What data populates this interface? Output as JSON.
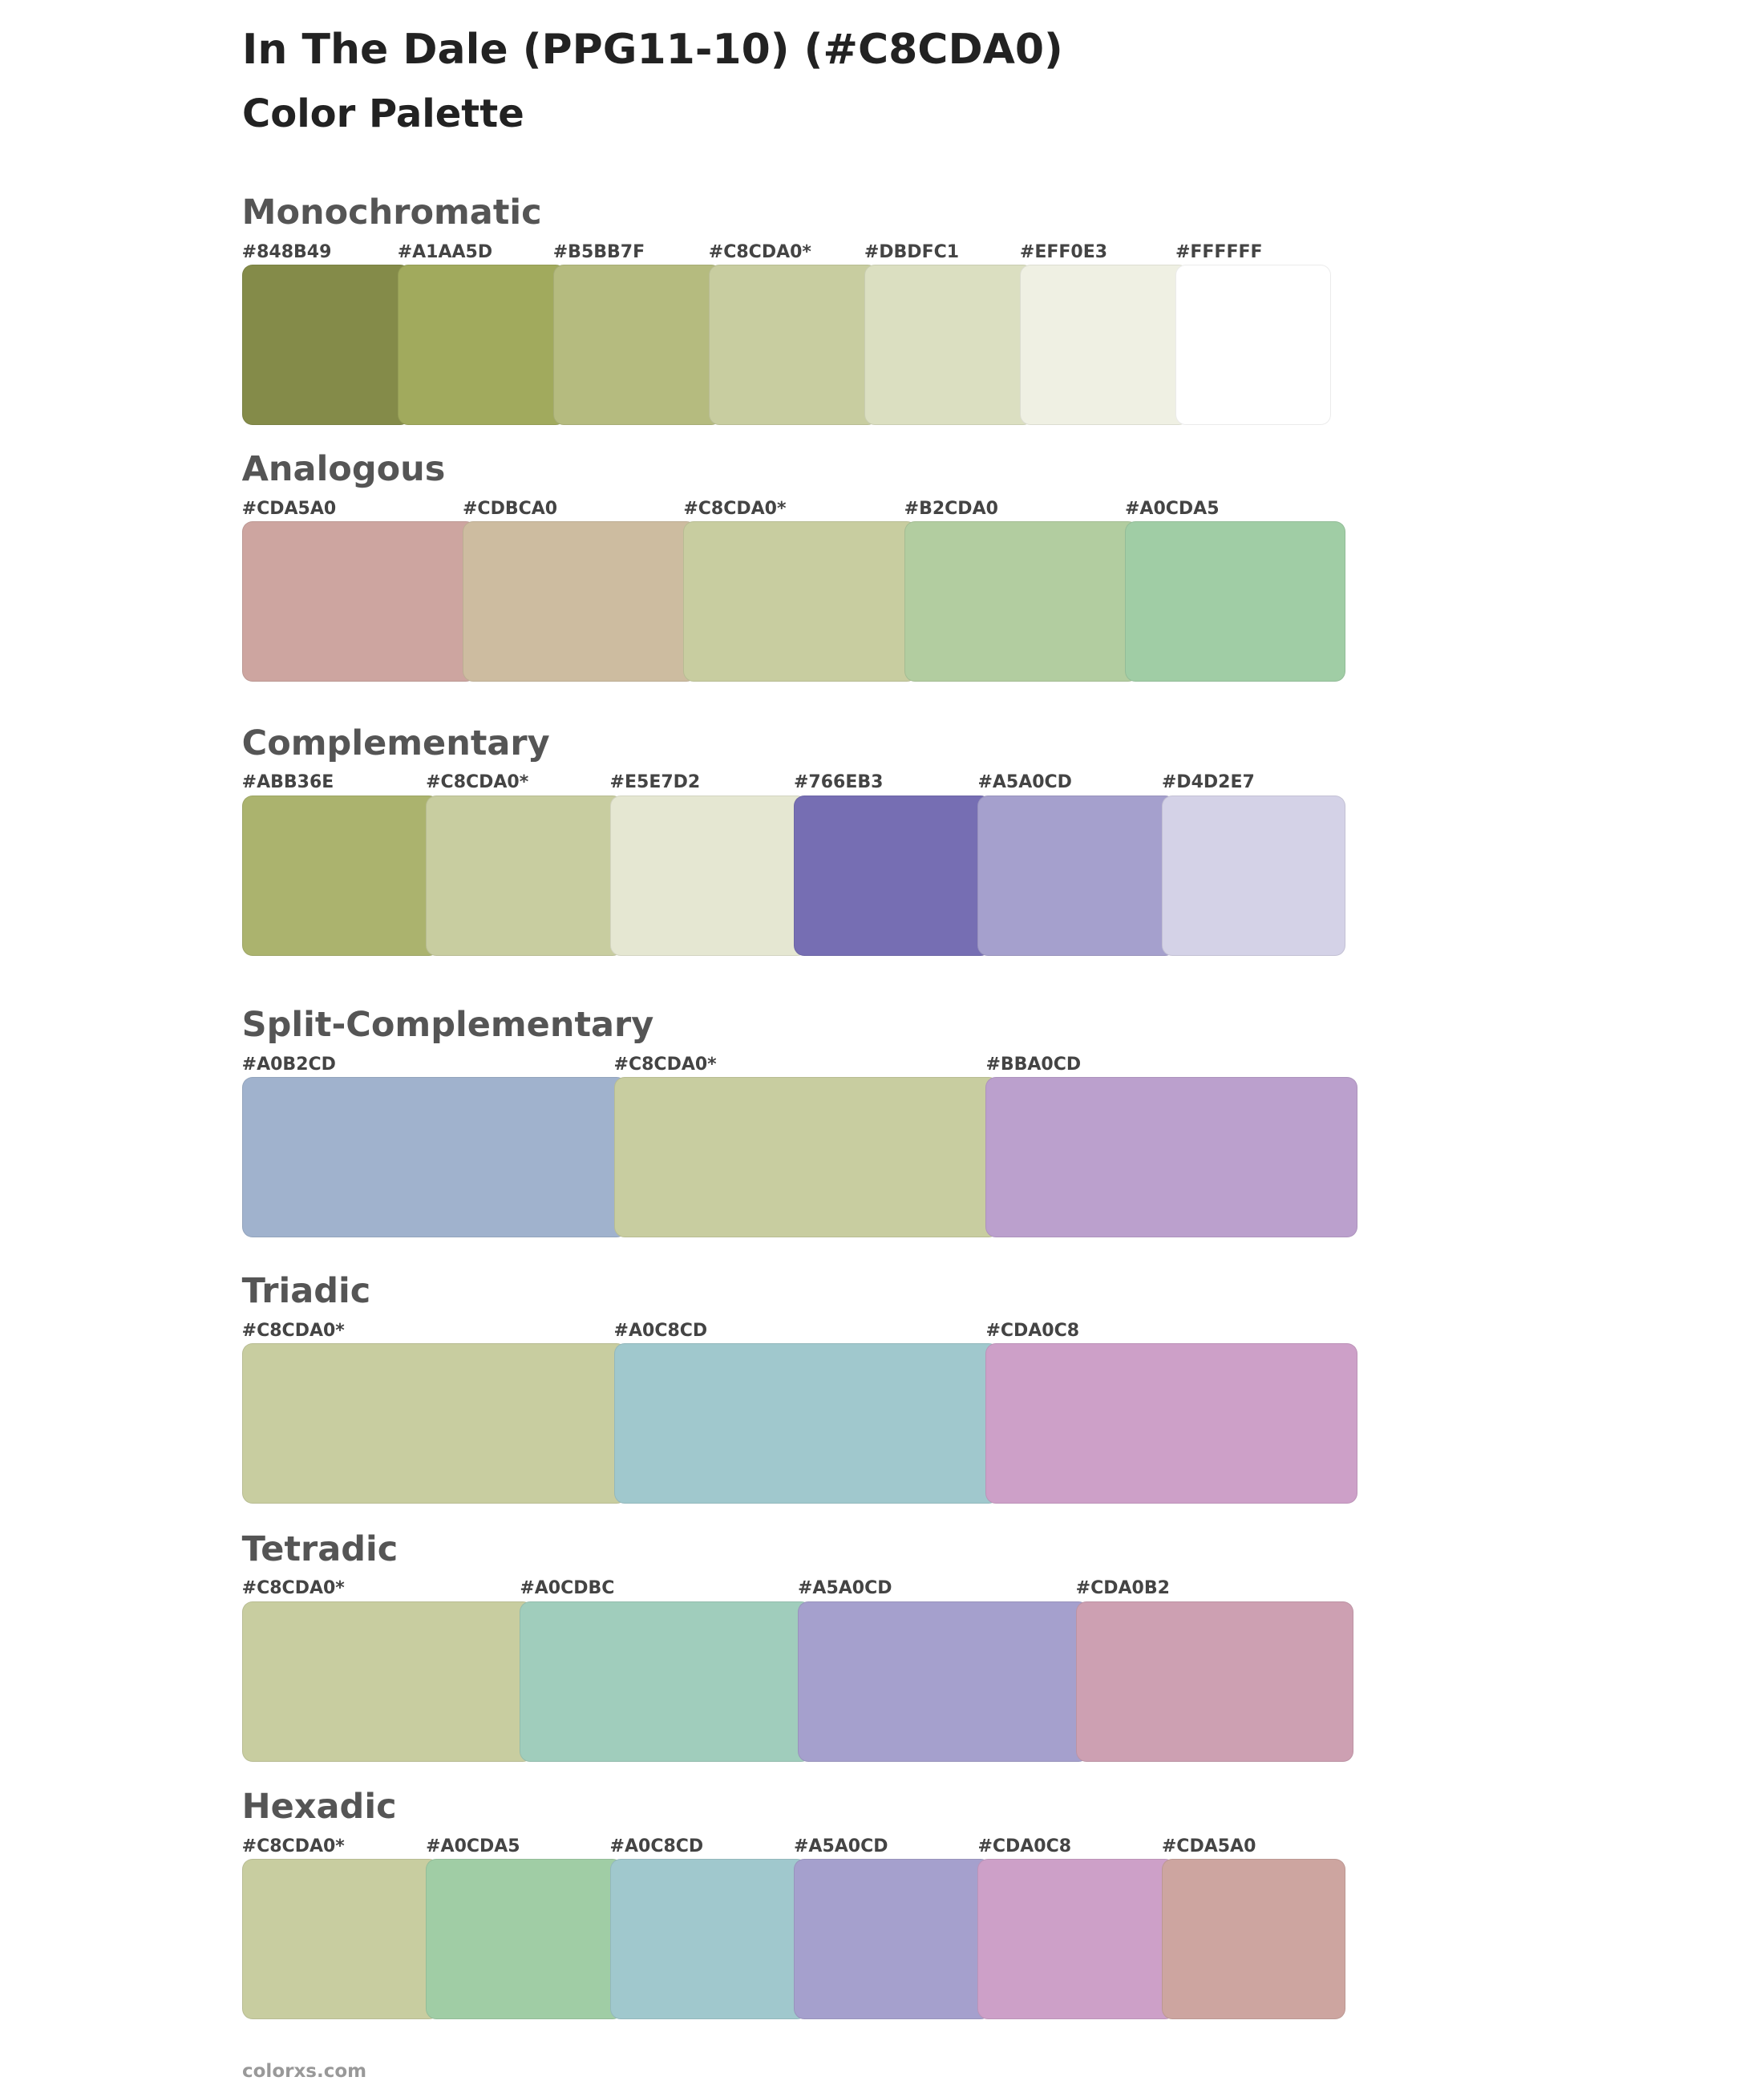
{
  "header": {
    "title": "In The Dale (PPG11-10) (#C8CDA0)",
    "subtitle": "Color Palette"
  },
  "sections": [
    {
      "title": "Monochromatic",
      "swatches": [
        {
          "label": "#848B49",
          "color": "#848B49"
        },
        {
          "label": "#A1AA5D",
          "color": "#A1AA5D"
        },
        {
          "label": "#B5BB7F",
          "color": "#B5BB7F"
        },
        {
          "label": "#C8CDA0*",
          "color": "#C8CDA0"
        },
        {
          "label": "#DBDFC1",
          "color": "#DBDFC1"
        },
        {
          "label": "#EFF0E3",
          "color": "#EFF0E3"
        },
        {
          "label": "#FFFFFF",
          "color": "#FFFFFF"
        }
      ]
    },
    {
      "title": "Analogous",
      "swatches": [
        {
          "label": "#CDA5A0",
          "color": "#CDA5A0"
        },
        {
          "label": "#CDBCA0",
          "color": "#CDBCA0"
        },
        {
          "label": "#C8CDA0*",
          "color": "#C8CDA0"
        },
        {
          "label": "#B2CDA0",
          "color": "#B2CDA0"
        },
        {
          "label": "#A0CDA5",
          "color": "#A0CDA5"
        }
      ]
    },
    {
      "title": "Complementary",
      "swatches": [
        {
          "label": "#ABB36E",
          "color": "#ABB36E"
        },
        {
          "label": "#C8CDA0*",
          "color": "#C8CDA0"
        },
        {
          "label": "#E5E7D2",
          "color": "#E5E7D2"
        },
        {
          "label": "#766EB3",
          "color": "#766EB3"
        },
        {
          "label": "#A5A0CD",
          "color": "#A5A0CD"
        },
        {
          "label": "#D4D2E7",
          "color": "#D4D2E7"
        }
      ]
    },
    {
      "title": "Split-Complementary",
      "swatches": [
        {
          "label": "#A0B2CD",
          "color": "#A0B2CD"
        },
        {
          "label": "#C8CDA0*",
          "color": "#C8CDA0"
        },
        {
          "label": "#BBA0CD",
          "color": "#BBA0CD"
        }
      ]
    },
    {
      "title": "Triadic",
      "swatches": [
        {
          "label": "#C8CDA0*",
          "color": "#C8CDA0"
        },
        {
          "label": "#A0C8CD",
          "color": "#A0C8CD"
        },
        {
          "label": "#CDA0C8",
          "color": "#CDA0C8"
        }
      ]
    },
    {
      "title": "Tetradic",
      "swatches": [
        {
          "label": "#C8CDA0*",
          "color": "#C8CDA0"
        },
        {
          "label": "#A0CDBC",
          "color": "#A0CDBC"
        },
        {
          "label": "#A5A0CD",
          "color": "#A5A0CD"
        },
        {
          "label": "#CDA0B2",
          "color": "#CDA0B2"
        }
      ]
    },
    {
      "title": "Hexadic",
      "swatches": [
        {
          "label": "#C8CDA0*",
          "color": "#C8CDA0"
        },
        {
          "label": "#A0CDA5",
          "color": "#A0CDA5"
        },
        {
          "label": "#A0C8CD",
          "color": "#A0C8CD"
        },
        {
          "label": "#A5A0CD",
          "color": "#A5A0CD"
        },
        {
          "label": "#CDA0C8",
          "color": "#CDA0C8"
        },
        {
          "label": "#CDA5A0",
          "color": "#CDA5A0"
        }
      ]
    }
  ],
  "footer": {
    "text": "colorxs.com"
  }
}
